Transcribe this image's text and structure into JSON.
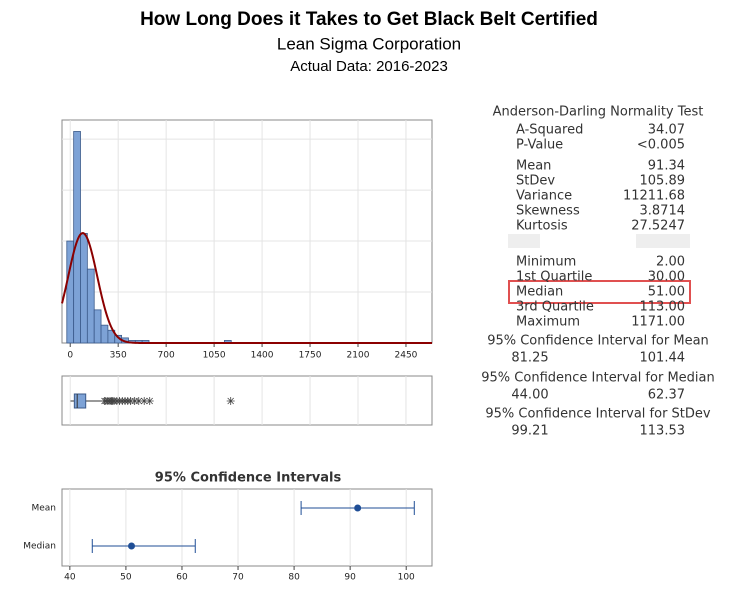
{
  "title": "How Long Does it Takes to Get Black Belt Certified",
  "subtitle": "Lean Sigma Corporation",
  "period": "Actual Data: 2016-2023",
  "chart_data": [
    {
      "type": "histogram",
      "bins": [
        -25,
        25,
        75,
        125,
        175,
        225,
        275,
        325,
        375,
        425,
        475,
        525,
        575,
        625,
        675,
        725,
        775,
        825,
        875,
        925,
        975,
        1025,
        1075,
        1125,
        1175
      ],
      "counts": [
        40,
        83,
        43,
        29,
        13,
        7,
        5,
        3,
        2,
        1,
        1,
        1,
        0,
        0,
        0,
        0,
        0,
        0,
        0,
        0,
        0,
        0,
        0,
        1
      ],
      "color": "#7da2d6",
      "fit_color": "#8b0000",
      "xlim": [
        -60,
        2640
      ],
      "xticks": [
        0,
        350,
        700,
        1050,
        1400,
        1750,
        2100,
        2450
      ],
      "ylim": [
        0,
        87.5
      ],
      "yticks": [
        20,
        40,
        60,
        80
      ],
      "grid": true
    },
    {
      "type": "boxplot",
      "color": "#7da2d6",
      "whisker_high": 235,
      "outliers": [
        250,
        260,
        275,
        290,
        300,
        310,
        320,
        340,
        360,
        380,
        400,
        420,
        440,
        470,
        500,
        540,
        580,
        1171
      ]
    },
    {
      "type": "interval",
      "title": "95% Confidence Intervals",
      "categories": [
        "Mean",
        "Median"
      ],
      "color": "#1f4e96",
      "xlim": [
        38.6,
        104.6
      ],
      "xticks": [
        40,
        50,
        60,
        70,
        80,
        90,
        100
      ],
      "grid": true
    }
  ],
  "summary": {
    "title": "Anderson-Darling Normality Test",
    "rows": [
      {
        "name": "A-Squared",
        "value": 34.07
      },
      {
        "name": "P-Value",
        "value": "<0.005"
      },
      {
        "name": "Mean",
        "value": 91.34
      },
      {
        "name": "StDev",
        "value": 105.89
      },
      {
        "name": "Variance",
        "value": 11211.68
      },
      {
        "name": "Skewness",
        "value": 3.8714
      },
      {
        "name": "Kurtosis",
        "value": 27.5247
      },
      {
        "name": "Minimum",
        "value": 2,
        "value_label": "2.00"
      },
      {
        "name": "1st Quartile",
        "value": 30,
        "value_label": "30.00"
      },
      {
        "name": "Median",
        "value": 51,
        "value_label": "51.00"
      },
      {
        "name": "3rd Quartile",
        "value": 113,
        "value_label": "113.00"
      },
      {
        "name": "Maximum",
        "value": 1171,
        "value_label": "1171.00"
      }
    ],
    "intervals": [
      {
        "title": "95% Confidence Interval for Mean",
        "low": 81.25,
        "high": 101.44
      },
      {
        "title": "95% Confidence Interval for Median",
        "low": 44,
        "low_label": "44.00",
        "high": 62.37
      },
      {
        "title": "95% Confidence Interval for StDev",
        "low": 99.21,
        "high": 113.53
      }
    ]
  }
}
